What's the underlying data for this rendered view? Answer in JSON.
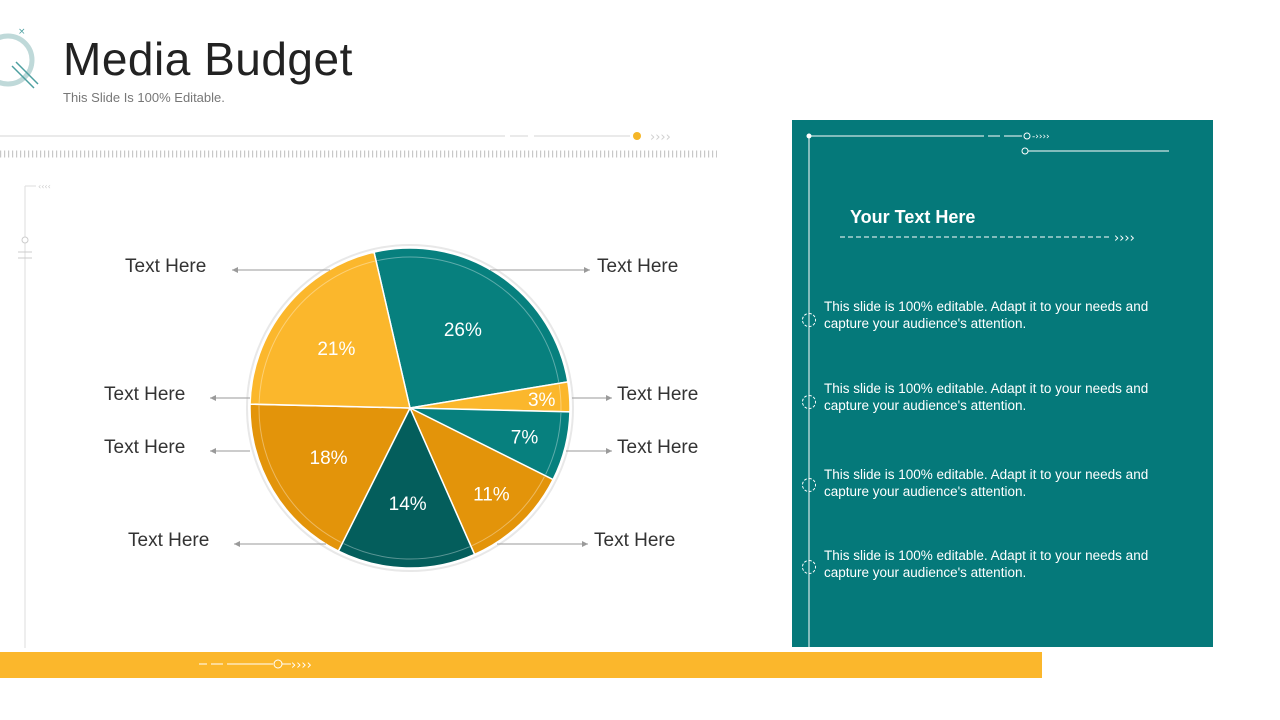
{
  "header": {
    "title": "Media Budget",
    "subtitle": "This Slide Is 100% Editable."
  },
  "colors": {
    "teal": "#07807E",
    "dark_teal": "#045E5C",
    "orange": "#E3940A",
    "light_orange": "#FBB72C",
    "panel": "#05797A"
  },
  "chart_data": {
    "type": "pie",
    "title": "",
    "slices": [
      {
        "label": "Text Here",
        "value": 26,
        "display": "26%",
        "color": "#07807E"
      },
      {
        "label": "Text Here",
        "value": 3,
        "display": "3%",
        "color": "#FBB72C"
      },
      {
        "label": "Text Here",
        "value": 7,
        "display": "7%",
        "color": "#07807E"
      },
      {
        "label": "Text Here",
        "value": 11,
        "display": "11%",
        "color": "#E3940A"
      },
      {
        "label": "Text Here",
        "value": 14,
        "display": "14%",
        "color": "#045E5C"
      },
      {
        "label": "Text Here",
        "value": 18,
        "display": "18%",
        "color": "#E3940A"
      },
      {
        "label": "Text Here",
        "value": 21,
        "display": "21%",
        "color": "#FBB72C"
      }
    ]
  },
  "panel": {
    "title": "Your Text Here",
    "items": [
      "This slide is 100% editable. Adapt it to your needs and capture your audience's attention.",
      "This slide is 100% editable. Adapt it to your needs and capture your audience's attention.",
      "This slide is 100% editable. Adapt it to your needs and capture your audience's attention.",
      "This slide is 100% editable. Adapt it to your needs and capture your audience's attention."
    ]
  }
}
